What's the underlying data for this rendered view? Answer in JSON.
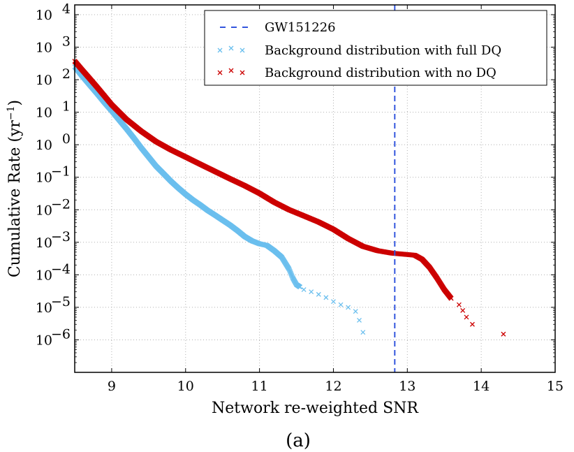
{
  "chart_data": {
    "type": "scatter",
    "title": "",
    "caption": "(a)",
    "xlabel": "Network re-weighted SNR",
    "ylabel": "Cumulative Rate (yr",
    "ylabel_exponent": "−1",
    "ylabel_close": ")",
    "xlim": [
      8.5,
      15
    ],
    "xscale": "linear",
    "yscale": "log",
    "ylim_exponent": [
      -7,
      4.3
    ],
    "x_ticks": [
      9,
      10,
      11,
      12,
      13,
      14,
      15
    ],
    "y_ticks": [
      {
        "base": "10",
        "exp": "4",
        "value": 4
      },
      {
        "base": "10",
        "exp": "3",
        "value": 3
      },
      {
        "base": "10",
        "exp": "2",
        "value": 2
      },
      {
        "base": "10",
        "exp": "1",
        "value": 1
      },
      {
        "base": "10",
        "exp": "0",
        "value": 0
      },
      {
        "base": "10",
        "exp": "−1",
        "value": -1
      },
      {
        "base": "10",
        "exp": "−2",
        "value": -2
      },
      {
        "base": "10",
        "exp": "−3",
        "value": -3
      },
      {
        "base": "10",
        "exp": "−4",
        "value": -4
      },
      {
        "base": "10",
        "exp": "−5",
        "value": -5
      },
      {
        "base": "10",
        "exp": "−6",
        "value": -6
      }
    ],
    "grid": true,
    "legend_position": "top-right",
    "vline": {
      "name": "GW151226",
      "x": 12.83,
      "color": "#3355dd",
      "style": "dashed"
    },
    "series": [
      {
        "name": "Background distribution with full DQ",
        "color": "#6bbfee",
        "marker": "x",
        "x": [
          8.5,
          8.6,
          8.7,
          8.8,
          8.9,
          9.0,
          9.1,
          9.2,
          9.3,
          9.4,
          9.5,
          9.6,
          9.7,
          9.8,
          9.9,
          10.0,
          10.1,
          10.2,
          10.3,
          10.4,
          10.5,
          10.6,
          10.7,
          10.8,
          10.9,
          11.0,
          11.1,
          11.2,
          11.3,
          11.4,
          11.45,
          11.5,
          11.55,
          11.6,
          11.7,
          11.8,
          11.9,
          12.0,
          12.1,
          12.2,
          12.3,
          12.35,
          12.4
        ],
        "y": [
          250,
          130,
          70,
          38,
          20,
          11,
          5.8,
          3.1,
          1.6,
          0.8,
          0.42,
          0.22,
          0.13,
          0.076,
          0.047,
          0.03,
          0.02,
          0.014,
          0.0095,
          0.0068,
          0.0048,
          0.0034,
          0.0023,
          0.0015,
          0.0011,
          0.0009,
          0.0008,
          0.00055,
          0.00035,
          0.00015,
          8e-05,
          5e-05,
          4.2e-05,
          3.5e-05,
          3e-05,
          2.5e-05,
          2e-05,
          1.5e-05,
          1.2e-05,
          1e-05,
          7.5e-06,
          4e-06,
          1.7e-06
        ]
      },
      {
        "name": "Background distribution with no DQ",
        "color": "#cc0000",
        "marker": "x",
        "x": [
          8.5,
          8.6,
          8.7,
          8.8,
          8.9,
          9.0,
          9.2,
          9.4,
          9.6,
          9.8,
          10.0,
          10.2,
          10.4,
          10.6,
          10.8,
          11.0,
          11.2,
          11.4,
          11.6,
          11.8,
          12.0,
          12.2,
          12.4,
          12.6,
          12.8,
          12.9,
          13.0,
          13.1,
          13.2,
          13.3,
          13.4,
          13.5,
          13.6,
          13.7,
          13.75,
          13.8,
          13.88,
          14.3
        ],
        "y": [
          370,
          200,
          110,
          60,
          32,
          17,
          6.0,
          2.6,
          1.25,
          0.7,
          0.42,
          0.25,
          0.15,
          0.09,
          0.055,
          0.032,
          0.017,
          0.01,
          0.0065,
          0.0042,
          0.0025,
          0.0013,
          0.00075,
          0.00055,
          0.00046,
          0.00044,
          0.00042,
          0.0004,
          0.0003,
          0.00017,
          8e-05,
          3.5e-05,
          1.8e-05,
          1.2e-05,
          8e-06,
          5e-06,
          3e-06,
          1.5e-06
        ]
      }
    ]
  }
}
